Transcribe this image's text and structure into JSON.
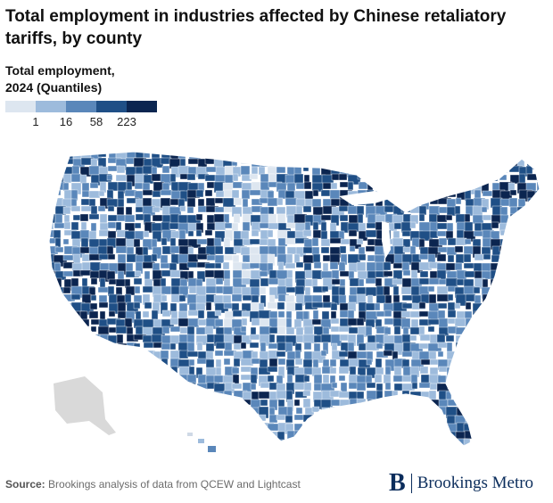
{
  "title": "Total employment in industries affected by Chinese retaliatory tariffs, by county",
  "legend": {
    "title_line1": "Total employment,",
    "title_line2": "2024 (Quantiles)",
    "colors": [
      "#dde6f0",
      "#9dbbdc",
      "#5a87ba",
      "#1f4f86",
      "#0b2550"
    ],
    "ticks": [
      "1",
      "16",
      "58",
      "223"
    ]
  },
  "map": {
    "fill_no_data": "#d9d9d9",
    "regions": [
      {
        "name": "southwest-desert",
        "level": 4
      },
      {
        "name": "california-coast",
        "level": 4
      },
      {
        "name": "northern-rockies",
        "level": 3
      },
      {
        "name": "great-plains",
        "level": 1
      },
      {
        "name": "midwest",
        "level": 3
      },
      {
        "name": "northeast",
        "level": 3
      },
      {
        "name": "southeast",
        "level": 2
      },
      {
        "name": "texas",
        "level": 2
      },
      {
        "name": "florida",
        "level": 3
      },
      {
        "name": "maine",
        "level": 3
      }
    ]
  },
  "source": {
    "label": "Source:",
    "text": " Brookings analysis of data from QCEW and Lightcast"
  },
  "brand": {
    "mark": "B",
    "name": "Brookings Metro"
  }
}
